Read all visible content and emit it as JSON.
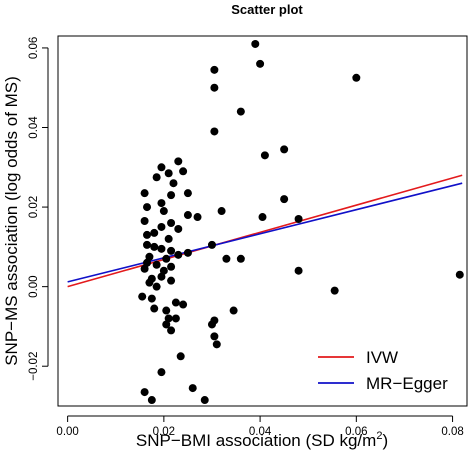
{
  "chart_data": {
    "type": "scatter",
    "title": "Scatter plot",
    "xlabel": "SNP−BMI association (SD kg/m",
    "xlabel_sup": "2",
    "xlabel_end": ")",
    "ylabel": "SNP−MS association (log odds of MS)",
    "xlim": [
      -0.002,
      0.083
    ],
    "ylim": [
      -0.03,
      0.063
    ],
    "x_ticks": [
      0.0,
      0.02,
      0.04,
      0.06,
      0.08
    ],
    "x_tick_labels": [
      "0.00",
      "0.02",
      "0.04",
      "0.06",
      "0.08"
    ],
    "y_ticks": [
      -0.02,
      0.0,
      0.02,
      0.04,
      0.06
    ],
    "y_tick_labels": [
      "−0.02",
      "0.00",
      "0.02",
      "0.04",
      "0.06"
    ],
    "grid": false,
    "legend": {
      "placement": "bottom-right",
      "entries": [
        {
          "name": "IVW",
          "color": "#e31a1c"
        },
        {
          "name": "MR−Egger",
          "color": "#1010c8"
        }
      ]
    },
    "points": [
      [
        0.039,
        0.061
      ],
      [
        0.0305,
        0.0545
      ],
      [
        0.04,
        0.056
      ],
      [
        0.0305,
        0.05
      ],
      [
        0.06,
        0.0525
      ],
      [
        0.036,
        0.044
      ],
      [
        0.0305,
        0.039
      ],
      [
        0.045,
        0.0345
      ],
      [
        0.041,
        0.033
      ],
      [
        0.023,
        0.0315
      ],
      [
        0.0195,
        0.03
      ],
      [
        0.024,
        0.029
      ],
      [
        0.021,
        0.0285
      ],
      [
        0.0185,
        0.0275
      ],
      [
        0.022,
        0.026
      ],
      [
        0.016,
        0.0235
      ],
      [
        0.0215,
        0.023
      ],
      [
        0.025,
        0.0235
      ],
      [
        0.045,
        0.022
      ],
      [
        0.0195,
        0.021
      ],
      [
        0.0165,
        0.02
      ],
      [
        0.02,
        0.019
      ],
      [
        0.032,
        0.019
      ],
      [
        0.025,
        0.018
      ],
      [
        0.027,
        0.0175
      ],
      [
        0.0405,
        0.0175
      ],
      [
        0.048,
        0.017
      ],
      [
        0.016,
        0.0165
      ],
      [
        0.0215,
        0.016
      ],
      [
        0.0195,
        0.015
      ],
      [
        0.023,
        0.0145
      ],
      [
        0.018,
        0.0135
      ],
      [
        0.0165,
        0.013
      ],
      [
        0.021,
        0.012
      ],
      [
        0.0165,
        0.0105
      ],
      [
        0.03,
        0.0105
      ],
      [
        0.018,
        0.01
      ],
      [
        0.0195,
        0.0095
      ],
      [
        0.0215,
        0.009
      ],
      [
        0.025,
        0.0085
      ],
      [
        0.023,
        0.008
      ],
      [
        0.017,
        0.0075
      ],
      [
        0.0205,
        0.007
      ],
      [
        0.033,
        0.007
      ],
      [
        0.036,
        0.007
      ],
      [
        0.0165,
        0.006
      ],
      [
        0.0185,
        0.0055
      ],
      [
        0.0215,
        0.005
      ],
      [
        0.016,
        0.0045
      ],
      [
        0.02,
        0.004
      ],
      [
        0.048,
        0.004
      ],
      [
        0.0815,
        0.003
      ],
      [
        0.0195,
        0.0025
      ],
      [
        0.0175,
        0.002
      ],
      [
        0.0215,
        0.0015
      ],
      [
        0.017,
        0.001
      ],
      [
        0.0185,
        0.0
      ],
      [
        0.0555,
        -0.001
      ],
      [
        0.0155,
        -0.0025
      ],
      [
        0.0175,
        -0.003
      ],
      [
        0.0225,
        -0.004
      ],
      [
        0.024,
        -0.0045
      ],
      [
        0.018,
        -0.0055
      ],
      [
        0.0205,
        -0.006
      ],
      [
        0.0345,
        -0.006
      ],
      [
        0.021,
        -0.008
      ],
      [
        0.0225,
        -0.008
      ],
      [
        0.0305,
        -0.0085
      ],
      [
        0.0205,
        -0.0095
      ],
      [
        0.03,
        -0.0095
      ],
      [
        0.0215,
        -0.011
      ],
      [
        0.0305,
        -0.0125
      ],
      [
        0.031,
        -0.0145
      ],
      [
        0.0235,
        -0.0175
      ],
      [
        0.0195,
        -0.0215
      ],
      [
        0.026,
        -0.0255
      ],
      [
        0.016,
        -0.0265
      ],
      [
        0.0175,
        -0.0285
      ],
      [
        0.0285,
        -0.0285
      ]
    ],
    "lines": [
      {
        "name": "IVW",
        "color": "#e31a1c",
        "x": [
          0.0,
          0.082
        ],
        "y": [
          0.0,
          0.028
        ]
      },
      {
        "name": "MR−Egger",
        "color": "#1010c8",
        "x": [
          0.0,
          0.082
        ],
        "y": [
          0.0012,
          0.026
        ]
      }
    ]
  }
}
